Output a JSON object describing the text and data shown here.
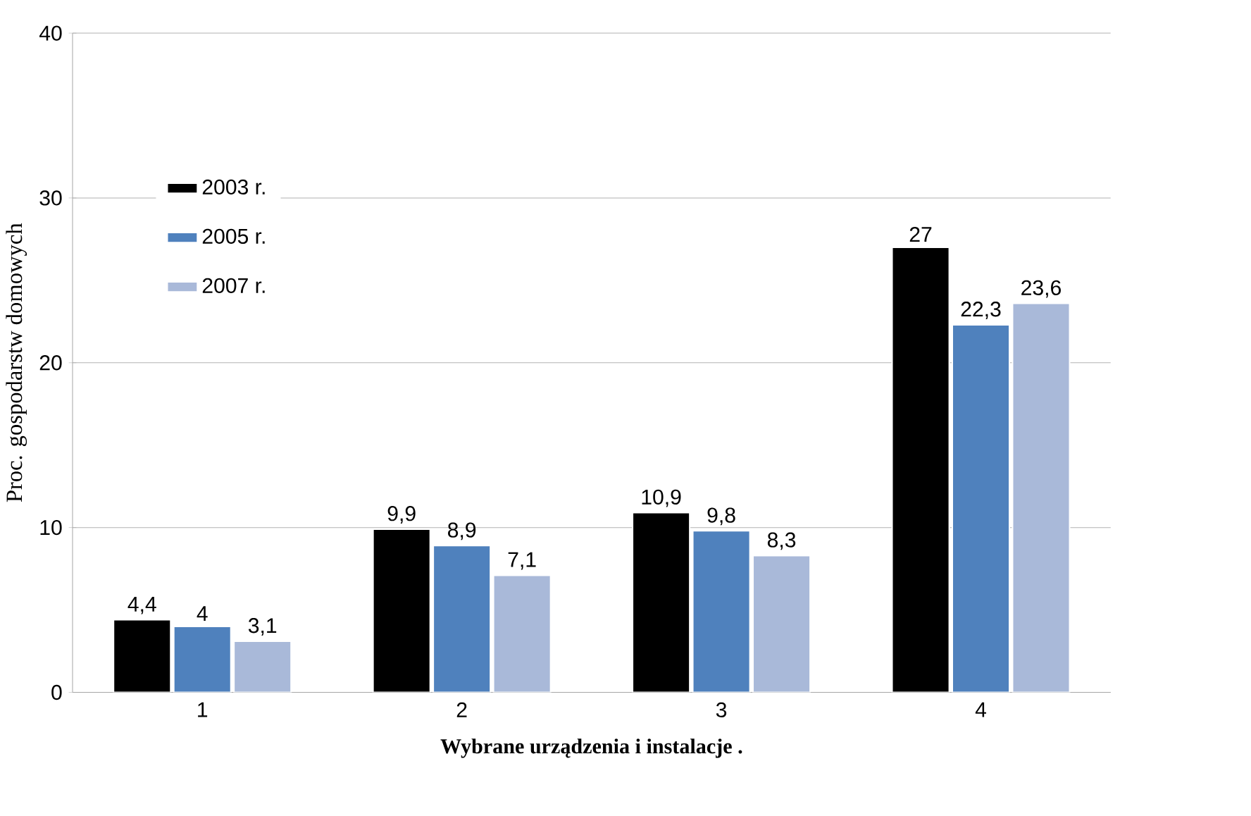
{
  "chart_data": {
    "type": "bar",
    "xlabel": "Wybrane urządzenia i instalacje  .",
    "ylabel": "Proc. gospodarstw domowych",
    "categories": [
      "1",
      "2",
      "3",
      "4"
    ],
    "series": [
      {
        "name": "2003 r.",
        "color": "#000000",
        "values": [
          4.4,
          9.9,
          10.9,
          27
        ],
        "value_labels": [
          "4,4",
          "9,9",
          "10,9",
          "27"
        ]
      },
      {
        "name": "2005 r.",
        "color": "#4f81bd",
        "values": [
          4,
          8.9,
          9.8,
          22.3
        ],
        "value_labels": [
          "4",
          "8,9",
          "9,8",
          "22,3"
        ]
      },
      {
        "name": "2007 r.",
        "color": "#a9b9d9",
        "values": [
          3.1,
          7.1,
          8.3,
          23.6
        ],
        "value_labels": [
          "3,1",
          "7,1",
          "8,3",
          "23,6"
        ]
      }
    ],
    "ylim": [
      0,
      40
    ],
    "yticks": [
      0,
      10,
      20,
      30,
      40
    ],
    "grid": "y",
    "legend": "top left"
  }
}
